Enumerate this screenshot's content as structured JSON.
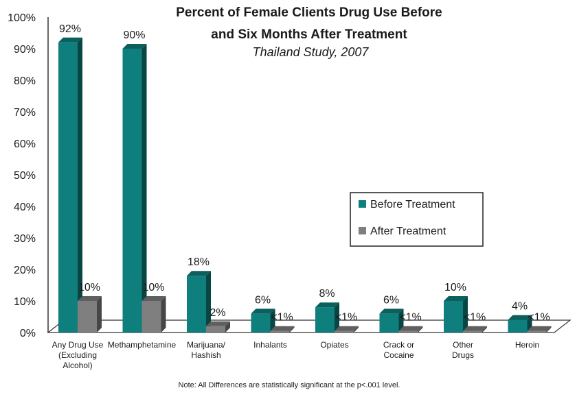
{
  "chart_data": {
    "type": "bar",
    "title_lines": [
      "Percent of Female Clients Drug Use Before",
      "and Six Months After Treatment"
    ],
    "subtitle": "Thailand Study, 2007",
    "ylim": [
      0,
      100
    ],
    "y_ticks": [
      "0%",
      "10%",
      "20%",
      "30%",
      "40%",
      "50%",
      "60%",
      "70%",
      "80%",
      "90%",
      "100%"
    ],
    "categories": [
      [
        "Any Drug Use",
        "(Excluding",
        "Alcohol)"
      ],
      [
        "Methamphetamine"
      ],
      [
        "Marijuana/",
        "Hashish"
      ],
      [
        "Inhalants"
      ],
      [
        "Opiates"
      ],
      [
        "Crack or",
        "Cocaine"
      ],
      [
        "Other",
        "Drugs"
      ],
      [
        "Heroin"
      ]
    ],
    "series": [
      {
        "name": "Before Treatment",
        "color": "#0e7f7c",
        "values": [
          92,
          90,
          18,
          6,
          8,
          6,
          10,
          4
        ],
        "labels": [
          "92%",
          "90%",
          "18%",
          "6%",
          "8%",
          "6%",
          "10%",
          "4%"
        ]
      },
      {
        "name": "After Treatment",
        "color": "#7f7f7f",
        "values": [
          10,
          10,
          2,
          0.5,
          0.5,
          0.5,
          0.5,
          0.5
        ],
        "labels": [
          "10%",
          "10%",
          "2%",
          "<1%",
          "<1%",
          "<1%",
          "<1%",
          "<1%"
        ]
      }
    ],
    "legend_position": "right",
    "note": "Note: All Differences are statistically significant at the p<.001 level."
  }
}
